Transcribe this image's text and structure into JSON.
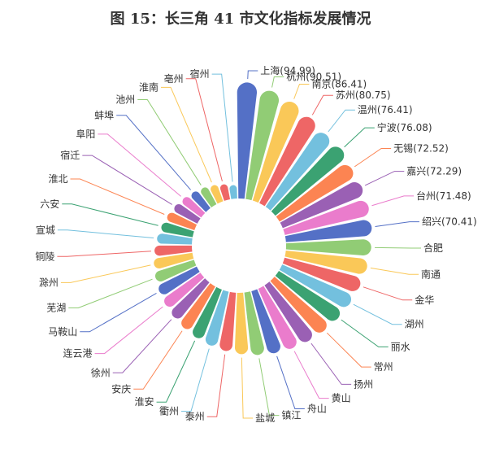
{
  "chart_data": {
    "type": "radial-bar",
    "title": "图 15：长三角 41 市文化指标发展情况",
    "categories": [
      "上海",
      "杭州",
      "南京",
      "苏州",
      "温州",
      "宁波",
      "无锡",
      "嘉兴",
      "台州",
      "绍兴",
      "合肥",
      "南通",
      "金华",
      "湖州",
      "丽水",
      "常州",
      "扬州",
      "黄山",
      "舟山",
      "镇江",
      "盐城",
      "泰州",
      "衢州",
      "淮安",
      "安庆",
      "徐州",
      "连云港",
      "马鞍山",
      "芜湖",
      "滁州",
      "铜陵",
      "宣城",
      "六安",
      "淮北",
      "宿迁",
      "阜阳",
      "蚌埠",
      "池州",
      "淮南",
      "亳州",
      "宿州"
    ],
    "values": [
      94.99,
      90.51,
      86.41,
      80.75,
      76.41,
      76.08,
      72.52,
      72.29,
      71.48,
      70.41,
      69,
      67,
      65,
      63,
      61,
      59,
      57,
      55,
      53,
      51,
      49,
      47,
      45,
      43,
      41,
      39,
      37,
      35,
      33,
      31,
      29,
      27,
      25,
      23,
      21,
      19,
      17,
      15,
      13,
      11,
      9
    ],
    "value_labels": [
      "(94.99)",
      "(90.51)",
      "(86.41)",
      "(80.75)",
      "(76.41)",
      "(76.08)",
      "(72.52)",
      "(72.29)",
      "(71.48)",
      "(70.41)",
      null,
      null,
      null,
      null,
      null,
      null,
      null,
      null,
      null,
      null,
      null,
      null,
      null,
      null,
      null,
      null,
      null,
      null,
      null,
      null,
      null,
      null,
      null,
      null,
      null,
      null,
      null,
      null,
      null,
      null,
      null
    ],
    "colors": [
      "#5470c6",
      "#91cc75",
      "#fac858",
      "#ee6666",
      "#73c0de",
      "#3ba272",
      "#fc8452",
      "#9a60b4",
      "#ea7ccc"
    ]
  }
}
